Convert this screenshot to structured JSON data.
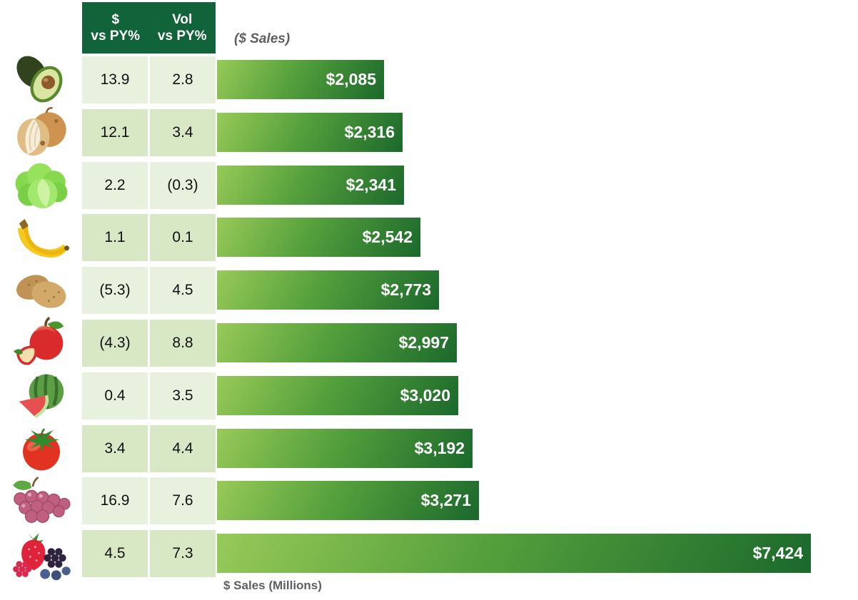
{
  "colors": {
    "header_bg": "#116339",
    "row_light": "#e8f0de",
    "row_dark": "#d9e8c4",
    "bar_grad_start": "#98ca58",
    "bar_grad_mid": "#55a03c",
    "bar_grad_end": "#1b692c",
    "bar_label": "#ffffff",
    "muted_text": "#5e5f62"
  },
  "headers": {
    "col1_line1": "$",
    "col1_line2": "vs PY%",
    "col2_line1": "Vol",
    "col2_line2": "vs PY%",
    "bars_title": "($ Sales)"
  },
  "footer": {
    "axis_label": "$ Sales (Millions)"
  },
  "rows": [
    {
      "icon": "avocado-icon",
      "dollar_vs_py": "13.9",
      "vol_vs_py": "2.8",
      "sales_label": "$2,085",
      "sales": 2085
    },
    {
      "icon": "onion-icon",
      "dollar_vs_py": "12.1",
      "vol_vs_py": "3.4",
      "sales_label": "$2,316",
      "sales": 2316
    },
    {
      "icon": "lettuce-icon",
      "dollar_vs_py": "2.2",
      "vol_vs_py": "(0.3)",
      "sales_label": "$2,341",
      "sales": 2341
    },
    {
      "icon": "banana-icon",
      "dollar_vs_py": "1.1",
      "vol_vs_py": "0.1",
      "sales_label": "$2,542",
      "sales": 2542
    },
    {
      "icon": "potato-icon",
      "dollar_vs_py": "(5.3)",
      "vol_vs_py": "4.5",
      "sales_label": "$2,773",
      "sales": 2773
    },
    {
      "icon": "apple-icon",
      "dollar_vs_py": "(4.3)",
      "vol_vs_py": "8.8",
      "sales_label": "$2,997",
      "sales": 2997
    },
    {
      "icon": "watermelon-icon",
      "dollar_vs_py": "0.4",
      "vol_vs_py": "3.5",
      "sales_label": "$3,020",
      "sales": 3020
    },
    {
      "icon": "tomato-icon",
      "dollar_vs_py": "3.4",
      "vol_vs_py": "4.4",
      "sales_label": "$3,192",
      "sales": 3192
    },
    {
      "icon": "grapes-icon",
      "dollar_vs_py": "16.9",
      "vol_vs_py": "7.6",
      "sales_label": "$3,271",
      "sales": 3271
    },
    {
      "icon": "berries-icon",
      "dollar_vs_py": "4.5",
      "vol_vs_py": "7.3",
      "sales_label": "$7,424",
      "sales": 7424
    }
  ],
  "chart_data": {
    "type": "bar",
    "orientation": "horizontal",
    "title": "($ Sales)",
    "xlabel": "$ Sales (Millions)",
    "xlim": [
      0,
      7424
    ],
    "grid": false,
    "legend": false,
    "categories": [
      "Avocados",
      "Onions",
      "Lettuce",
      "Bananas",
      "Potatoes",
      "Apples",
      "Watermelon",
      "Tomatoes",
      "Grapes",
      "Berries"
    ],
    "series": [
      {
        "name": "$ Sales (Millions)",
        "values": [
          2085,
          2316,
          2341,
          2542,
          2773,
          2997,
          3020,
          3192,
          3271,
          7424
        ],
        "labels": [
          "$2,085",
          "$2,316",
          "$2,341",
          "$2,542",
          "$2,773",
          "$2,997",
          "$3,020",
          "$3,192",
          "$3,271",
          "$7,424"
        ]
      },
      {
        "name": "$ vs PY%",
        "values": [
          13.9,
          12.1,
          2.2,
          1.1,
          -5.3,
          -4.3,
          0.4,
          3.4,
          16.9,
          4.5
        ]
      },
      {
        "name": "Vol vs PY%",
        "values": [
          2.8,
          3.4,
          -0.3,
          0.1,
          4.5,
          8.8,
          3.5,
          4.4,
          7.6,
          7.3
        ]
      }
    ]
  }
}
